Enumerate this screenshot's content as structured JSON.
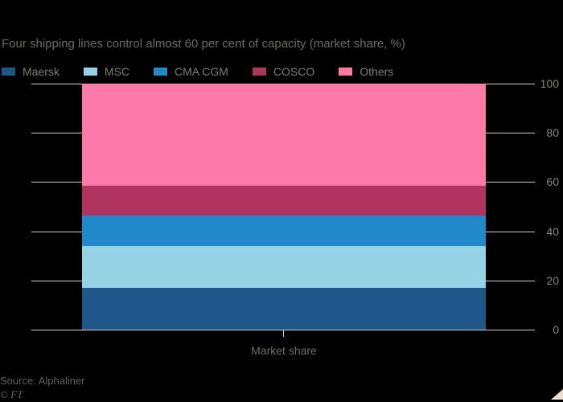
{
  "title": "Four shipping lines control almost 60 per cent of capacity (market share, %)",
  "chart_data": {
    "type": "bar",
    "stacked": true,
    "orientation": "vertical",
    "categories": [
      "Market share"
    ],
    "series": [
      {
        "name": "Maersk",
        "values": [
          17.0
        ],
        "color": "#20578a"
      },
      {
        "name": "MSC",
        "values": [
          16.9
        ],
        "color": "#95d3e4"
      },
      {
        "name": "CMA CGM",
        "values": [
          12.4
        ],
        "color": "#2189ca"
      },
      {
        "name": "COSCO",
        "values": [
          12.3
        ],
        "color": "#b13460"
      },
      {
        "name": "Others",
        "values": [
          41.4
        ],
        "color": "#fd7aa8"
      }
    ],
    "title": "Four shipping lines control almost 60 per cent of capacity (market share, %)",
    "xlabel": "Market share",
    "ylabel": "",
    "ylim": [
      0,
      100
    ],
    "yticks": [
      0,
      20,
      40,
      60,
      80,
      100
    ],
    "grid": true,
    "legend_position": "top",
    "axis_side": "right"
  },
  "legend": [
    {
      "label": "Maersk",
      "color": "#20578a"
    },
    {
      "label": "MSC",
      "color": "#95d3e4"
    },
    {
      "label": "CMA CGM",
      "color": "#2189ca"
    },
    {
      "label": "COSCO",
      "color": "#b13460"
    },
    {
      "label": "Others",
      "color": "#fd7aa8"
    }
  ],
  "footer": {
    "source": "Source: Alphaliner",
    "credit": "© FT"
  },
  "colors": {
    "background": "#000000",
    "gridline": "#d6cec4",
    "axis_label_text": "#8b857c",
    "title_text": "#6b6b62",
    "legend_text": "#7d7d75",
    "source_text": "#61615a",
    "watermark_triangle": "#efddd0"
  }
}
